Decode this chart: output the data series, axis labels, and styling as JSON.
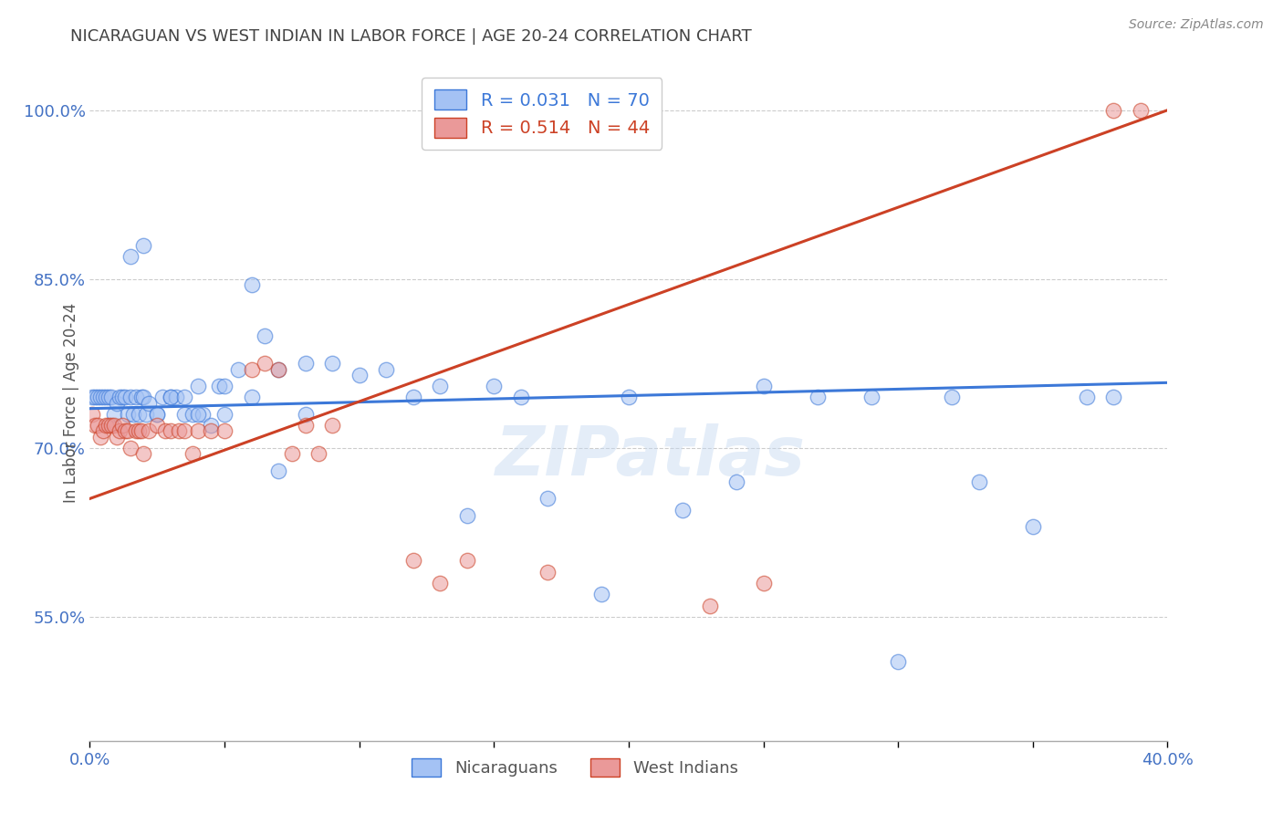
{
  "title": "NICARAGUAN VS WEST INDIAN IN LABOR FORCE | AGE 20-24 CORRELATION CHART",
  "source": "Source: ZipAtlas.com",
  "ylabel": "In Labor Force | Age 20-24",
  "yticks_labels": [
    "100.0%",
    "85.0%",
    "70.0%",
    "55.0%"
  ],
  "ytick_vals": [
    1.0,
    0.85,
    0.7,
    0.55
  ],
  "xlim": [
    0.0,
    0.4
  ],
  "ylim": [
    0.44,
    1.04
  ],
  "xticks": [
    0.0,
    0.05,
    0.1,
    0.15,
    0.2,
    0.25,
    0.3,
    0.35,
    0.4
  ],
  "watermark": "ZIPatlas",
  "legend_blue_r": "R = 0.031",
  "legend_blue_n": "N = 70",
  "legend_pink_r": "R = 0.514",
  "legend_pink_n": "N = 44",
  "blue_scatter_x": [
    0.001,
    0.002,
    0.003,
    0.004,
    0.005,
    0.006,
    0.007,
    0.008,
    0.009,
    0.01,
    0.011,
    0.012,
    0.013,
    0.014,
    0.015,
    0.016,
    0.017,
    0.018,
    0.019,
    0.02,
    0.021,
    0.022,
    0.025,
    0.027,
    0.03,
    0.032,
    0.035,
    0.038,
    0.04,
    0.042,
    0.045,
    0.048,
    0.05,
    0.055,
    0.06,
    0.065,
    0.07,
    0.08,
    0.09,
    0.1,
    0.11,
    0.12,
    0.13,
    0.14,
    0.15,
    0.16,
    0.17,
    0.19,
    0.2,
    0.22,
    0.24,
    0.25,
    0.27,
    0.29,
    0.3,
    0.32,
    0.35,
    0.37,
    0.38,
    0.015,
    0.02,
    0.025,
    0.03,
    0.035,
    0.04,
    0.05,
    0.06,
    0.07,
    0.08,
    0.33
  ],
  "blue_scatter_y": [
    0.745,
    0.745,
    0.745,
    0.745,
    0.745,
    0.745,
    0.745,
    0.745,
    0.73,
    0.74,
    0.745,
    0.745,
    0.745,
    0.73,
    0.745,
    0.73,
    0.745,
    0.73,
    0.745,
    0.745,
    0.73,
    0.74,
    0.73,
    0.745,
    0.745,
    0.745,
    0.73,
    0.73,
    0.755,
    0.73,
    0.72,
    0.755,
    0.755,
    0.77,
    0.845,
    0.8,
    0.77,
    0.775,
    0.775,
    0.765,
    0.77,
    0.745,
    0.755,
    0.64,
    0.755,
    0.745,
    0.655,
    0.57,
    0.745,
    0.645,
    0.67,
    0.755,
    0.745,
    0.745,
    0.51,
    0.745,
    0.63,
    0.745,
    0.745,
    0.87,
    0.88,
    0.73,
    0.745,
    0.745,
    0.73,
    0.73,
    0.745,
    0.68,
    0.73,
    0.67
  ],
  "pink_scatter_x": [
    0.001,
    0.002,
    0.003,
    0.004,
    0.005,
    0.006,
    0.007,
    0.008,
    0.009,
    0.01,
    0.011,
    0.012,
    0.013,
    0.014,
    0.015,
    0.017,
    0.018,
    0.019,
    0.02,
    0.022,
    0.025,
    0.028,
    0.03,
    0.033,
    0.035,
    0.038,
    0.04,
    0.045,
    0.05,
    0.06,
    0.065,
    0.07,
    0.075,
    0.08,
    0.085,
    0.09,
    0.12,
    0.13,
    0.14,
    0.17,
    0.23,
    0.25,
    0.38,
    0.39
  ],
  "pink_scatter_y": [
    0.73,
    0.72,
    0.72,
    0.71,
    0.715,
    0.72,
    0.72,
    0.72,
    0.72,
    0.71,
    0.715,
    0.72,
    0.715,
    0.715,
    0.7,
    0.715,
    0.715,
    0.715,
    0.695,
    0.715,
    0.72,
    0.715,
    0.715,
    0.715,
    0.715,
    0.695,
    0.715,
    0.715,
    0.715,
    0.77,
    0.775,
    0.77,
    0.695,
    0.72,
    0.695,
    0.72,
    0.6,
    0.58,
    0.6,
    0.59,
    0.56,
    0.58,
    1.0,
    1.0
  ],
  "blue_line_x": [
    0.0,
    0.4
  ],
  "blue_line_y": [
    0.735,
    0.758
  ],
  "pink_line_x": [
    0.0,
    0.4
  ],
  "pink_line_y": [
    0.655,
    1.0
  ],
  "blue_color": "#a4c2f4",
  "pink_color": "#ea9999",
  "blue_line_color": "#3c78d8",
  "pink_line_color": "#cc4125",
  "background_color": "#ffffff",
  "grid_color": "#cccccc",
  "title_color": "#434343",
  "axis_label_color": "#4472c4",
  "ylabel_color": "#555555"
}
